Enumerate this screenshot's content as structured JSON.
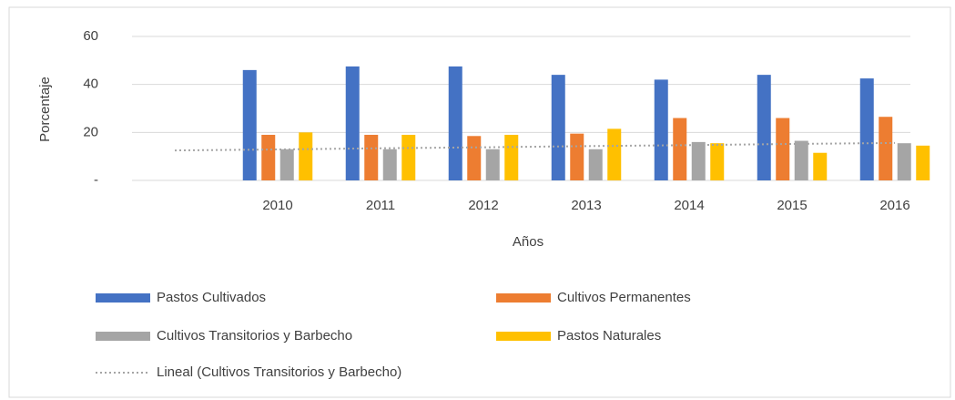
{
  "chart_data": {
    "type": "bar",
    "x_label": "Años",
    "y_label": "Porcentaje",
    "categories": [
      null,
      "2010",
      "2011",
      "2012",
      "2013",
      "2014",
      "2015",
      "2016"
    ],
    "series": [
      {
        "name": "Pastos Cultivados",
        "color": "#4472c4",
        "values": [
          null,
          46,
          47.5,
          47.5,
          44,
          42,
          44,
          42.5
        ]
      },
      {
        "name": "Cultivos Permanentes",
        "color": "#ed7d31",
        "values": [
          null,
          19,
          19,
          18.5,
          19.5,
          26,
          26,
          26.5
        ]
      },
      {
        "name": "Cultivos Transitorios y Barbecho",
        "color": "#a5a5a5",
        "values": [
          null,
          13,
          13,
          13,
          13,
          16,
          16.5,
          15.5
        ]
      },
      {
        "name": "Pastos Naturales",
        "color": "#ffc000",
        "values": [
          null,
          20,
          19,
          19,
          21.5,
          15.5,
          11.5,
          14.5
        ]
      }
    ],
    "trendline": {
      "name": "Lineal (Cultivos Transitorios y Barbecho)",
      "color": "#a5a5a5",
      "values": [
        12.5,
        12.9,
        13.4,
        13.8,
        14.3,
        14.7,
        15.2,
        15.6
      ]
    },
    "ylim": [
      0,
      60
    ],
    "yticks": [
      {
        "value": 0,
        "label": "-"
      },
      20,
      40,
      60
    ],
    "grid": true
  }
}
